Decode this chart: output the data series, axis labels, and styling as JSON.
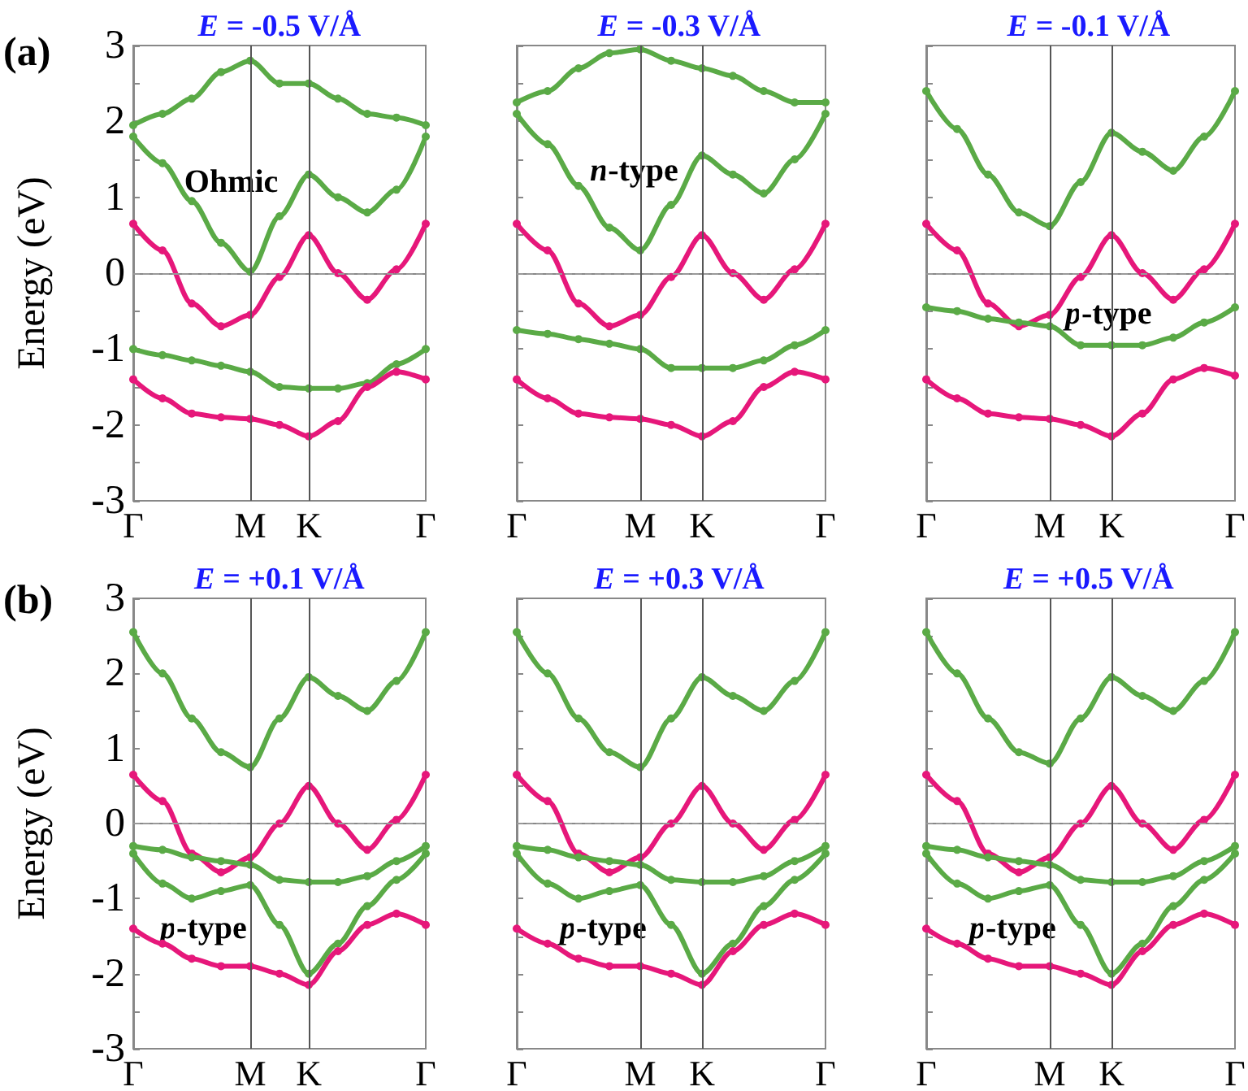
{
  "chart_data": [
    {
      "type": "line",
      "title": "E = -0.5 V/Å",
      "ylabel": "Energy (eV)",
      "marker": "circle",
      "annotations": [
        "(a)",
        "Ohmic"
      ],
      "categories": [
        "Γ",
        null,
        null,
        null,
        "M",
        null,
        "K",
        null,
        null,
        null,
        "Γ"
      ],
      "ylim": [
        -3,
        3
      ],
      "yticks": [
        -3,
        {
          "value": -2.5,
          "label": null
        },
        -2,
        {
          "value": -1.5,
          "label": null
        },
        -1,
        {
          "value": -0.5,
          "label": null
        },
        0,
        {
          "value": 0.5,
          "label": null
        },
        1,
        {
          "value": 1.5,
          "label": null
        },
        2,
        {
          "value": 2.5,
          "label": null
        },
        3
      ],
      "ref_lines": [
        {
          "axis": "y",
          "value": 0,
          "color": "#999999",
          "line_style": "dashed"
        },
        {
          "axis": "x",
          "value": "M",
          "color": "#555555",
          "line_style": "solid"
        },
        {
          "axis": "x",
          "value": "K",
          "color": "#555555",
          "line_style": "solid"
        }
      ],
      "series": [
        {
          "color": "#5aaa46",
          "values": [
            1.95,
            2.1,
            2.3,
            2.65,
            2.8,
            2.5,
            2.5,
            2.3,
            2.1,
            2.05,
            1.95
          ]
        },
        {
          "color": "#5aaa46",
          "values": [
            1.8,
            1.45,
            0.95,
            0.4,
            0.02,
            0.75,
            1.3,
            1.0,
            0.8,
            1.1,
            1.8
          ]
        },
        {
          "color": "#e6177a",
          "values": [
            0.65,
            0.3,
            -0.4,
            -0.7,
            -0.55,
            -0.05,
            0.5,
            0.0,
            -0.35,
            0.05,
            0.65
          ]
        },
        {
          "color": "#5aaa46",
          "values": [
            -1.0,
            -1.08,
            -1.15,
            -1.22,
            -1.3,
            -1.5,
            -1.52,
            -1.52,
            -1.45,
            -1.2,
            -1.0
          ]
        },
        {
          "color": "#e6177a",
          "values": [
            -1.4,
            -1.65,
            -1.85,
            -1.9,
            -1.92,
            -2.0,
            -2.15,
            -1.95,
            -1.5,
            -1.3,
            -1.4
          ]
        }
      ]
    },
    {
      "type": "line",
      "title": "E = -0.3 V/Å",
      "marker": "circle",
      "tick_labels": "x",
      "annotations": [
        "n-type"
      ],
      "categories": [
        "Γ",
        null,
        null,
        null,
        "M",
        null,
        "K",
        null,
        null,
        null,
        "Γ"
      ],
      "ylim": [
        -3,
        3
      ],
      "yticks": [
        -3,
        {
          "value": -2.5,
          "label": null
        },
        -2,
        {
          "value": -1.5,
          "label": null
        },
        -1,
        {
          "value": -0.5,
          "label": null
        },
        0,
        {
          "value": 0.5,
          "label": null
        },
        1,
        {
          "value": 1.5,
          "label": null
        },
        2,
        {
          "value": 2.5,
          "label": null
        },
        3
      ],
      "ref_lines": [
        {
          "axis": "y",
          "value": 0,
          "color": "#999999",
          "line_style": "dashed"
        },
        {
          "axis": "x",
          "value": "M",
          "color": "#555555",
          "line_style": "solid"
        },
        {
          "axis": "x",
          "value": "K",
          "color": "#555555",
          "line_style": "solid"
        }
      ],
      "series": [
        {
          "color": "#5aaa46",
          "values": [
            2.25,
            2.4,
            2.7,
            2.9,
            2.95,
            2.8,
            2.7,
            2.6,
            2.4,
            2.25,
            2.25
          ]
        },
        {
          "color": "#5aaa46",
          "values": [
            2.1,
            1.7,
            1.15,
            0.6,
            0.3,
            0.9,
            1.55,
            1.3,
            1.05,
            1.5,
            2.1
          ]
        },
        {
          "color": "#e6177a",
          "values": [
            0.65,
            0.3,
            -0.4,
            -0.7,
            -0.55,
            -0.05,
            0.5,
            0.0,
            -0.35,
            0.05,
            0.65
          ]
        },
        {
          "color": "#5aaa46",
          "values": [
            -0.75,
            -0.8,
            -0.87,
            -0.93,
            -1.0,
            -1.25,
            -1.25,
            -1.25,
            -1.15,
            -0.95,
            -0.75
          ]
        },
        {
          "color": "#e6177a",
          "values": [
            -1.4,
            -1.65,
            -1.85,
            -1.9,
            -1.92,
            -2.0,
            -2.15,
            -1.95,
            -1.5,
            -1.3,
            -1.4
          ]
        }
      ]
    },
    {
      "type": "line",
      "title": "E = -0.1 V/Å",
      "marker": "circle",
      "tick_labels": "x",
      "annotations": [
        "p-type"
      ],
      "categories": [
        "Γ",
        null,
        null,
        null,
        "M",
        null,
        "K",
        null,
        null,
        null,
        "Γ"
      ],
      "ylim": [
        -3,
        3
      ],
      "yticks": [
        -3,
        {
          "value": -2.5,
          "label": null
        },
        -2,
        {
          "value": -1.5,
          "label": null
        },
        -1,
        {
          "value": -0.5,
          "label": null
        },
        0,
        {
          "value": 0.5,
          "label": null
        },
        1,
        {
          "value": 1.5,
          "label": null
        },
        2,
        {
          "value": 2.5,
          "label": null
        },
        3
      ],
      "ref_lines": [
        {
          "axis": "y",
          "value": 0,
          "color": "#999999",
          "line_style": "dashed"
        },
        {
          "axis": "x",
          "value": "M",
          "color": "#555555",
          "line_style": "solid"
        },
        {
          "axis": "x",
          "value": "K",
          "color": "#555555",
          "line_style": "solid"
        }
      ],
      "series": [
        {
          "color": "#5aaa46",
          "values": [
            2.4,
            1.9,
            1.3,
            0.8,
            0.62,
            1.2,
            1.85,
            1.6,
            1.35,
            1.8,
            2.4
          ]
        },
        {
          "color": "#e6177a",
          "values": [
            0.65,
            0.3,
            -0.4,
            -0.7,
            -0.55,
            -0.05,
            0.5,
            0.0,
            -0.35,
            0.05,
            0.65
          ]
        },
        {
          "color": "#5aaa46",
          "values": [
            -0.45,
            -0.5,
            -0.6,
            -0.65,
            -0.7,
            -0.95,
            -0.95,
            -0.95,
            -0.85,
            -0.65,
            -0.45
          ]
        },
        {
          "color": "#e6177a",
          "values": [
            -1.4,
            -1.65,
            -1.85,
            -1.9,
            -1.92,
            -2.0,
            -2.15,
            -1.85,
            -1.4,
            -1.25,
            -1.35
          ]
        }
      ]
    },
    {
      "type": "line",
      "title": "E = +0.1 V/Å",
      "ylabel": "Energy (eV)",
      "marker": "circle",
      "annotations": [
        "(b)",
        "p-type"
      ],
      "categories": [
        "Γ",
        null,
        null,
        null,
        "M",
        null,
        "K",
        null,
        null,
        null,
        "Γ"
      ],
      "ylim": [
        -3,
        3
      ],
      "yticks": [
        -3,
        {
          "value": -2.5,
          "label": null
        },
        -2,
        {
          "value": -1.5,
          "label": null
        },
        -1,
        {
          "value": -0.5,
          "label": null
        },
        0,
        {
          "value": 0.5,
          "label": null
        },
        1,
        {
          "value": 1.5,
          "label": null
        },
        2,
        {
          "value": 2.5,
          "label": null
        },
        3
      ],
      "ref_lines": [
        {
          "axis": "y",
          "value": 0,
          "color": "#999999",
          "line_style": "dashed"
        },
        {
          "axis": "x",
          "value": "M",
          "color": "#555555",
          "line_style": "solid"
        },
        {
          "axis": "x",
          "value": "K",
          "color": "#555555",
          "line_style": "solid"
        }
      ],
      "series": [
        {
          "color": "#5aaa46",
          "values": [
            2.55,
            2.0,
            1.4,
            0.95,
            0.75,
            1.4,
            1.95,
            1.7,
            1.5,
            1.9,
            2.55
          ]
        },
        {
          "color": "#e6177a",
          "values": [
            0.65,
            0.3,
            -0.4,
            -0.65,
            -0.45,
            0.0,
            0.5,
            0.0,
            -0.35,
            0.05,
            0.65
          ]
        },
        {
          "color": "#5aaa46",
          "values": [
            -0.3,
            -0.35,
            -0.45,
            -0.5,
            -0.55,
            -0.75,
            -0.78,
            -0.78,
            -0.7,
            -0.5,
            -0.3
          ]
        },
        {
          "color": "#5aaa46",
          "values": [
            -0.4,
            -0.8,
            -1.0,
            -0.9,
            -0.82,
            -1.35,
            -2.0,
            -1.6,
            -1.1,
            -0.75,
            -0.4
          ]
        },
        {
          "color": "#e6177a",
          "values": [
            -1.4,
            -1.6,
            -1.8,
            -1.9,
            -1.9,
            -2.0,
            -2.15,
            -1.7,
            -1.35,
            -1.2,
            -1.35
          ]
        }
      ]
    },
    {
      "type": "line",
      "title": "E = +0.3 V/Å",
      "marker": "circle",
      "tick_labels": "x",
      "annotations": [
        "p-type"
      ],
      "categories": [
        "Γ",
        null,
        null,
        null,
        "M",
        null,
        "K",
        null,
        null,
        null,
        "Γ"
      ],
      "ylim": [
        -3,
        3
      ],
      "yticks": [
        -3,
        {
          "value": -2.5,
          "label": null
        },
        -2,
        {
          "value": -1.5,
          "label": null
        },
        -1,
        {
          "value": -0.5,
          "label": null
        },
        0,
        {
          "value": 0.5,
          "label": null
        },
        1,
        {
          "value": 1.5,
          "label": null
        },
        2,
        {
          "value": 2.5,
          "label": null
        },
        3
      ],
      "ref_lines": [
        {
          "axis": "y",
          "value": 0,
          "color": "#999999",
          "line_style": "dashed"
        },
        {
          "axis": "x",
          "value": "M",
          "color": "#555555",
          "line_style": "solid"
        },
        {
          "axis": "x",
          "value": "K",
          "color": "#555555",
          "line_style": "solid"
        }
      ],
      "series": [
        {
          "color": "#5aaa46",
          "values": [
            2.55,
            2.0,
            1.4,
            0.95,
            0.75,
            1.4,
            1.95,
            1.7,
            1.5,
            1.9,
            2.55
          ]
        },
        {
          "color": "#e6177a",
          "values": [
            0.65,
            0.3,
            -0.4,
            -0.65,
            -0.45,
            0.0,
            0.5,
            0.0,
            -0.35,
            0.05,
            0.65
          ]
        },
        {
          "color": "#5aaa46",
          "values": [
            -0.3,
            -0.35,
            -0.45,
            -0.5,
            -0.55,
            -0.75,
            -0.78,
            -0.78,
            -0.7,
            -0.5,
            -0.3
          ]
        },
        {
          "color": "#5aaa46",
          "values": [
            -0.4,
            -0.8,
            -1.0,
            -0.9,
            -0.82,
            -1.35,
            -2.0,
            -1.6,
            -1.1,
            -0.75,
            -0.4
          ]
        },
        {
          "color": "#e6177a",
          "values": [
            -1.4,
            -1.6,
            -1.8,
            -1.9,
            -1.9,
            -2.0,
            -2.15,
            -1.7,
            -1.35,
            -1.2,
            -1.35
          ]
        }
      ]
    },
    {
      "type": "line",
      "title": "E = +0.5 V/Å",
      "marker": "circle",
      "tick_labels": "x",
      "annotations": [
        "p-type"
      ],
      "categories": [
        "Γ",
        null,
        null,
        null,
        "M",
        null,
        "K",
        null,
        null,
        null,
        "Γ"
      ],
      "ylim": [
        -3,
        3
      ],
      "yticks": [
        -3,
        {
          "value": -2.5,
          "label": null
        },
        -2,
        {
          "value": -1.5,
          "label": null
        },
        -1,
        {
          "value": -0.5,
          "label": null
        },
        0,
        {
          "value": 0.5,
          "label": null
        },
        1,
        {
          "value": 1.5,
          "label": null
        },
        2,
        {
          "value": 2.5,
          "label": null
        },
        3
      ],
      "ref_lines": [
        {
          "axis": "y",
          "value": 0,
          "color": "#999999",
          "line_style": "dashed"
        },
        {
          "axis": "x",
          "value": "M",
          "color": "#555555",
          "line_style": "solid"
        },
        {
          "axis": "x",
          "value": "K",
          "color": "#555555",
          "line_style": "solid"
        }
      ],
      "series": [
        {
          "color": "#5aaa46",
          "values": [
            2.55,
            2.0,
            1.4,
            0.95,
            0.8,
            1.4,
            1.95,
            1.7,
            1.5,
            1.9,
            2.55
          ]
        },
        {
          "color": "#e6177a",
          "values": [
            0.65,
            0.3,
            -0.4,
            -0.65,
            -0.45,
            0.0,
            0.5,
            0.0,
            -0.35,
            0.05,
            0.65
          ]
        },
        {
          "color": "#5aaa46",
          "values": [
            -0.3,
            -0.35,
            -0.45,
            -0.5,
            -0.55,
            -0.75,
            -0.78,
            -0.78,
            -0.7,
            -0.5,
            -0.3
          ]
        },
        {
          "color": "#5aaa46",
          "values": [
            -0.4,
            -0.8,
            -1.0,
            -0.9,
            -0.82,
            -1.35,
            -2.0,
            -1.6,
            -1.1,
            -0.75,
            -0.4
          ]
        },
        {
          "color": "#e6177a",
          "values": [
            -1.4,
            -1.6,
            -1.8,
            -1.9,
            -1.9,
            -2.0,
            -2.15,
            -1.7,
            -1.35,
            -1.2,
            -1.35
          ]
        }
      ]
    }
  ]
}
